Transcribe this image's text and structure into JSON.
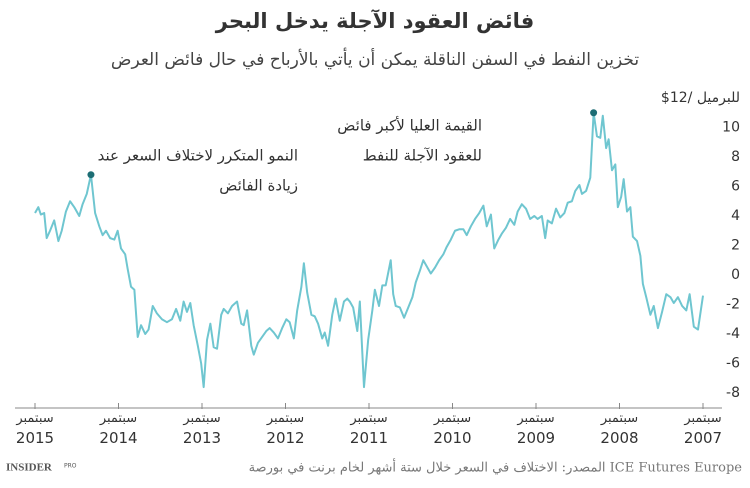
{
  "chart_data": {
    "type": "line",
    "title": "فائض العقود الآجلة يدخل البحر",
    "subtitle": "تخزين النفط في السفن الناقلة يمكن أن يأتي بالأرباح في حال فائض العرض",
    "source": "المصدر: الاختلاف في السعر خلال ستة أشهر لخام برنت في بورصة ICE Futures Europe",
    "logo": "INSIDER",
    "logo_sub": "PRO",
    "x": [
      2015.67,
      2015.63,
      2015.6,
      2015.56,
      2015.53,
      2015.49,
      2015.44,
      2015.39,
      2015.35,
      2015.3,
      2015.25,
      2015.2,
      2015.14,
      2015.1,
      2015.05,
      2015.0,
      2014.95,
      2014.9,
      2014.86,
      2014.82,
      2014.77,
      2014.72,
      2014.68,
      2014.64,
      2014.59,
      2014.56,
      2014.52,
      2014.48,
      2014.44,
      2014.4,
      2014.35,
      2014.31,
      2014.26,
      2014.21,
      2014.15,
      2014.09,
      2014.03,
      2013.98,
      2013.93,
      2013.89,
      2013.85,
      2013.81,
      2013.77,
      2013.72,
      2013.68,
      2013.65,
      2013.61,
      2013.57,
      2013.53,
      2013.49,
      2013.44,
      2013.41,
      2013.36,
      2013.31,
      2013.25,
      2013.2,
      2013.17,
      2013.13,
      2013.08,
      2013.05,
      2013.0,
      2012.95,
      2012.9,
      2012.86,
      2012.81,
      2012.76,
      2012.71,
      2012.66,
      2012.62,
      2012.57,
      2012.53,
      2012.48,
      2012.45,
      2012.41,
      2012.36,
      2012.32,
      2012.28,
      2012.23,
      2012.2,
      2012.16,
      2012.11,
      2012.07,
      2012.02,
      2011.97,
      2011.93,
      2011.9,
      2011.86,
      2011.81,
      2011.78,
      2011.73,
      2011.68,
      2011.63,
      2011.6,
      2011.55,
      2011.51,
      2011.47,
      2011.41,
      2011.38,
      2011.35,
      2011.3,
      2011.25,
      2011.2,
      2011.15,
      2011.11,
      2011.06,
      2011.02,
      2010.98,
      2010.93,
      2010.88,
      2010.83,
      2010.78,
      2010.74,
      2010.69,
      2010.64,
      2010.59,
      2010.54,
      2010.5,
      2010.45,
      2010.4,
      2010.35,
      2010.3,
      2010.26,
      2010.21,
      2010.17,
      2010.12,
      2010.08,
      2010.03,
      2009.98,
      2009.93,
      2009.89,
      2009.84,
      2009.79,
      2009.74,
      2009.69,
      2009.65,
      2009.6,
      2009.56,
      2009.53,
      2009.48,
      2009.43,
      2009.38,
      2009.33,
      2009.29,
      2009.24,
      2009.2,
      2009.15,
      2009.12,
      2009.07,
      2009.02,
      2008.98,
      2008.94,
      2008.9,
      2008.87,
      2008.83,
      2008.8,
      2008.76,
      2008.72,
      2008.69,
      2008.65,
      2008.62,
      2008.58,
      2008.54,
      2008.51,
      2008.46,
      2008.42,
      2008.39,
      2008.35,
      2008.3,
      2008.26,
      2008.21,
      2008.16,
      2008.11,
      2008.06,
      2008.02,
      2007.97,
      2007.92,
      2007.87,
      2007.83,
      2007.78,
      2007.73,
      2007.67
    ],
    "series": [
      {
        "color": "#6fc6d0",
        "values": [
          4.2,
          4.6,
          4.1,
          4.2,
          2.5,
          3.0,
          3.7,
          2.3,
          3.0,
          4.3,
          5.0,
          4.6,
          4.0,
          4.8,
          5.5,
          6.8,
          4.2,
          3.3,
          2.7,
          3.0,
          2.5,
          2.4,
          3.0,
          1.8,
          1.4,
          0.4,
          -0.8,
          -1.0,
          -4.2,
          -3.4,
          -4.0,
          -3.7,
          -2.1,
          -2.6,
          -3.0,
          -3.2,
          -3.0,
          -2.3,
          -3.1,
          -1.8,
          -2.5,
          -1.9,
          -3.4,
          -4.8,
          -6.0,
          -7.6,
          -4.4,
          -3.3,
          -4.9,
          -5.0,
          -2.7,
          -2.3,
          -2.6,
          -2.1,
          -1.8,
          -3.3,
          -3.4,
          -2.4,
          -4.8,
          -5.4,
          -4.6,
          -4.2,
          -3.8,
          -3.6,
          -3.9,
          -4.3,
          -3.6,
          -3.0,
          -3.2,
          -4.3,
          -2.4,
          -0.8,
          0.8,
          -1.2,
          -2.7,
          -2.8,
          -3.3,
          -4.3,
          -3.9,
          -4.8,
          -2.7,
          -1.6,
          -3.1,
          -1.8,
          -1.6,
          -1.8,
          -2.2,
          -3.8,
          -1.8,
          -7.6,
          -4.4,
          -2.4,
          -1.0,
          -2.1,
          -0.7,
          -0.7,
          1.0,
          -1.3,
          -2.1,
          -2.2,
          -2.9,
          -2.2,
          -1.5,
          -0.5,
          0.3,
          1.0,
          0.6,
          0.1,
          0.5,
          1.0,
          1.4,
          1.9,
          2.4,
          3.0,
          3.1,
          3.1,
          2.7,
          3.3,
          3.8,
          4.2,
          4.7,
          3.3,
          4.1,
          1.8,
          2.4,
          2.8,
          3.2,
          3.8,
          3.4,
          4.3,
          4.8,
          4.5,
          3.8,
          4.0,
          3.8,
          4.0,
          2.5,
          3.7,
          3.5,
          4.5,
          3.9,
          4.2,
          4.9,
          5.0,
          5.7,
          6.1,
          5.5,
          5.7,
          6.6,
          11.0,
          9.4,
          9.3,
          10.8,
          8.6,
          9.2,
          7.1,
          7.5,
          4.6,
          5.3,
          6.5,
          4.3,
          4.6,
          2.6,
          2.3,
          1.3,
          -0.6,
          -1.5,
          -2.7,
          -2.1,
          -3.6,
          -2.5,
          -1.3,
          -1.5,
          -1.9,
          -1.5,
          -2.1,
          -2.4,
          -1.3,
          -3.5,
          -3.7,
          -1.4
        ]
      }
    ],
    "xlim": [
      2015.67,
      2007.67
    ],
    "xticks": [
      {
        "value": 2015.67,
        "label": "سبتمبر 2015"
      },
      {
        "value": 2014.67,
        "label": "سبتمبر 2014"
      },
      {
        "value": 2013.67,
        "label": "سبتمبر 2013"
      },
      {
        "value": 2012.67,
        "label": "سبتمبر 2012"
      },
      {
        "value": 2011.67,
        "label": "سبتمبر 2011"
      },
      {
        "value": 2010.67,
        "label": "سبتمبر 2010"
      },
      {
        "value": 2009.67,
        "label": "سبتمبر 2009"
      },
      {
        "value": 2008.67,
        "label": "سبتمبر 2008"
      },
      {
        "value": 2007.67,
        "label": "سبتمبر 2007"
      }
    ],
    "ylim": [
      -8,
      12
    ],
    "yticks": [
      -8,
      -6,
      -4,
      -2,
      0,
      2,
      4,
      6,
      8,
      10,
      {
        "value": 12,
        "label": "$12/ للبرميل"
      }
    ],
    "grid": false,
    "annotations": [
      {
        "point": 15,
        "lines": [
          "النمو المتكرر لاختلاف السعر عند",
          "زيادة الفائض"
        ]
      },
      {
        "point": 149,
        "lines": [
          "القيمة العليا لأكبر فائض",
          "للعقود الآجلة للنفط"
        ]
      }
    ]
  }
}
